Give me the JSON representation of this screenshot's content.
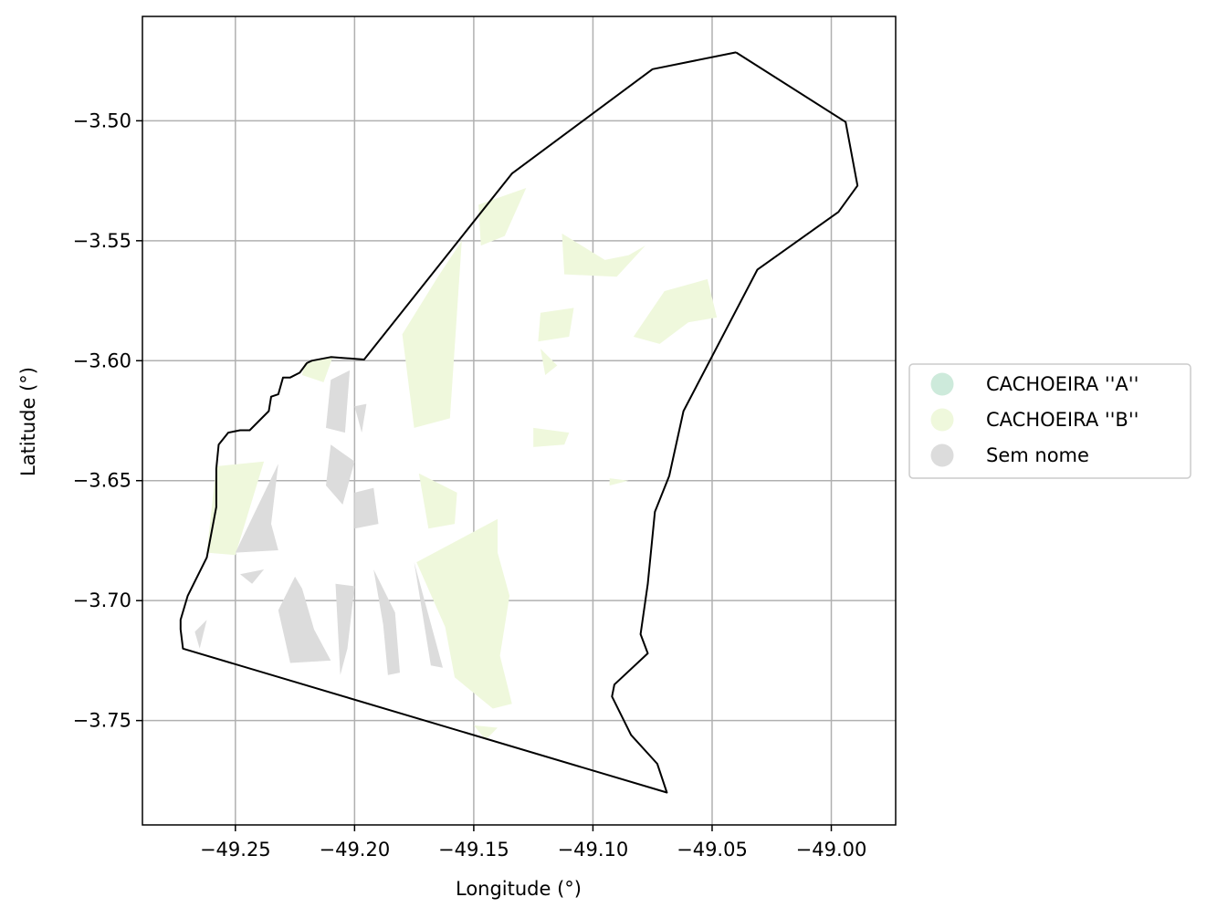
{
  "chart_data": {
    "type": "map",
    "title": "",
    "xlabel": "Longitude (°)",
    "ylabel": "Latitude (°)",
    "xlim": [
      -49.289,
      -48.973
    ],
    "ylim": [
      -3.7935,
      -3.4565
    ],
    "grid": true,
    "legend_position": "right-center",
    "x_ticks": [
      {
        "value": -49.25,
        "label": "−49.25"
      },
      {
        "value": -49.2,
        "label": "−49.20"
      },
      {
        "value": -49.15,
        "label": "−49.15"
      },
      {
        "value": -49.1,
        "label": "−49.10"
      },
      {
        "value": -49.05,
        "label": "−49.05"
      },
      {
        "value": -49.0,
        "label": "−49.00"
      }
    ],
    "y_ticks": [
      {
        "value": -3.5,
        "label": "−3.50"
      },
      {
        "value": -3.55,
        "label": "−3.55"
      },
      {
        "value": -3.6,
        "label": "−3.60"
      },
      {
        "value": -3.65,
        "label": "−3.65"
      },
      {
        "value": -3.7,
        "label": "−3.70"
      },
      {
        "value": -3.75,
        "label": "−3.75"
      }
    ],
    "legend": [
      {
        "label": "CACHOEIRA ''A''",
        "color": "#cdeadb"
      },
      {
        "label": "CACHOEIRA ''B''",
        "color": "#eff8dc"
      },
      {
        "label": "Sem nome",
        "color": "#dcdcdc"
      }
    ],
    "boundary": [
      [
        -49.04,
        -3.4715
      ],
      [
        -48.994,
        -3.5005
      ],
      [
        -48.989,
        -3.527
      ],
      [
        -48.997,
        -3.538
      ],
      [
        -49.031,
        -3.562
      ],
      [
        -49.062,
        -3.621
      ],
      [
        -49.068,
        -3.648
      ],
      [
        -49.074,
        -3.663
      ],
      [
        -49.077,
        -3.693
      ],
      [
        -49.08,
        -3.714
      ],
      [
        -49.077,
        -3.722
      ],
      [
        -49.091,
        -3.735
      ],
      [
        -49.092,
        -3.74
      ],
      [
        -49.084,
        -3.756
      ],
      [
        -49.073,
        -3.768
      ],
      [
        -49.069,
        -3.78
      ],
      [
        -49.272,
        -3.72
      ],
      [
        -49.273,
        -3.712
      ],
      [
        -49.273,
        -3.708
      ],
      [
        -49.27,
        -3.698
      ],
      [
        -49.262,
        -3.682
      ],
      [
        -49.258,
        -3.661
      ],
      [
        -49.258,
        -3.645
      ],
      [
        -49.257,
        -3.635
      ],
      [
        -49.253,
        -3.63
      ],
      [
        -49.248,
        -3.629
      ],
      [
        -49.244,
        -3.629
      ],
      [
        -49.236,
        -3.621
      ],
      [
        -49.235,
        -3.615
      ],
      [
        -49.232,
        -3.614
      ],
      [
        -49.23,
        -3.607
      ],
      [
        -49.227,
        -3.607
      ],
      [
        -49.223,
        -3.605
      ],
      [
        -49.22,
        -3.601
      ],
      [
        -49.218,
        -3.6
      ],
      [
        -49.21,
        -3.5985
      ],
      [
        -49.196,
        -3.5995
      ],
      [
        -49.134,
        -3.522
      ],
      [
        -49.075,
        -3.4785
      ],
      [
        -49.04,
        -3.4715
      ]
    ],
    "regions": [
      {
        "series": "CACHOEIRA ''B''",
        "points": [
          [
            -49.165,
            -3.565
          ],
          [
            -49.155,
            -3.55
          ],
          [
            -49.16,
            -3.624
          ],
          [
            -49.175,
            -3.628
          ],
          [
            -49.18,
            -3.589
          ]
        ]
      },
      {
        "series": "CACHOEIRA ''B''",
        "points": [
          [
            -49.148,
            -3.535
          ],
          [
            -49.128,
            -3.528
          ],
          [
            -49.137,
            -3.548
          ],
          [
            -49.147,
            -3.552
          ]
        ]
      },
      {
        "series": "CACHOEIRA ''B''",
        "points": [
          [
            -49.122,
            -3.58
          ],
          [
            -49.108,
            -3.578
          ],
          [
            -49.11,
            -3.59
          ],
          [
            -49.123,
            -3.592
          ]
        ]
      },
      {
        "series": "CACHOEIRA ''B''",
        "points": [
          [
            -49.113,
            -3.547
          ],
          [
            -49.095,
            -3.558
          ],
          [
            -49.085,
            -3.556
          ],
          [
            -49.078,
            -3.552
          ],
          [
            -49.09,
            -3.565
          ],
          [
            -49.112,
            -3.564
          ]
        ]
      },
      {
        "series": "CACHOEIRA ''B''",
        "points": [
          [
            -49.07,
            -3.571
          ],
          [
            -49.052,
            -3.566
          ],
          [
            -49.048,
            -3.582
          ],
          [
            -49.06,
            -3.584
          ],
          [
            -49.072,
            -3.593
          ],
          [
            -49.083,
            -3.59
          ]
        ]
      },
      {
        "series": "CACHOEIRA ''B''",
        "points": [
          [
            -49.122,
            -3.595
          ],
          [
            -49.115,
            -3.602
          ],
          [
            -49.12,
            -3.606
          ]
        ]
      },
      {
        "series": "CACHOEIRA ''B''",
        "points": [
          [
            -49.125,
            -3.628
          ],
          [
            -49.11,
            -3.63
          ],
          [
            -49.112,
            -3.635
          ],
          [
            -49.125,
            -3.636
          ]
        ]
      },
      {
        "series": "CACHOEIRA ''B''",
        "points": [
          [
            -49.093,
            -3.649
          ],
          [
            -49.085,
            -3.65
          ],
          [
            -49.093,
            -3.652
          ]
        ]
      },
      {
        "series": "CACHOEIRA ''B''",
        "points": [
          [
            -49.173,
            -3.647
          ],
          [
            -49.157,
            -3.655
          ],
          [
            -49.158,
            -3.668
          ],
          [
            -49.169,
            -3.67
          ]
        ]
      },
      {
        "series": "CACHOEIRA ''B''",
        "points": [
          [
            -49.174,
            -3.684
          ],
          [
            -49.14,
            -3.666
          ],
          [
            -49.14,
            -3.68
          ],
          [
            -49.135,
            -3.698
          ],
          [
            -49.139,
            -3.723
          ],
          [
            -49.134,
            -3.743
          ],
          [
            -49.142,
            -3.745
          ],
          [
            -49.158,
            -3.732
          ],
          [
            -49.162,
            -3.711
          ]
        ]
      },
      {
        "series": "CACHOEIRA ''B''",
        "points": [
          [
            -49.15,
            -3.752
          ],
          [
            -49.14,
            -3.753
          ],
          [
            -49.145,
            -3.758
          ]
        ]
      },
      {
        "series": "CACHOEIRA ''B''",
        "points": [
          [
            -49.258,
            -3.644
          ],
          [
            -49.238,
            -3.642
          ],
          [
            -49.25,
            -3.681
          ],
          [
            -49.262,
            -3.68
          ]
        ]
      },
      {
        "series": "CACHOEIRA ''B''",
        "points": [
          [
            -49.221,
            -3.601
          ],
          [
            -49.209,
            -3.598
          ],
          [
            -49.213,
            -3.609
          ],
          [
            -49.222,
            -3.606
          ]
        ]
      },
      {
        "series": "Sem nome",
        "points": [
          [
            -49.232,
            -3.643
          ],
          [
            -49.25,
            -3.68
          ],
          [
            -49.232,
            -3.679
          ],
          [
            -49.235,
            -3.668
          ]
        ]
      },
      {
        "series": "Sem nome",
        "points": [
          [
            -49.21,
            -3.608
          ],
          [
            -49.202,
            -3.604
          ],
          [
            -49.204,
            -3.63
          ],
          [
            -49.212,
            -3.628
          ]
        ]
      },
      {
        "series": "Sem nome",
        "points": [
          [
            -49.21,
            -3.635
          ],
          [
            -49.2,
            -3.642
          ],
          [
            -49.205,
            -3.66
          ],
          [
            -49.212,
            -3.652
          ]
        ]
      },
      {
        "series": "Sem nome",
        "points": [
          [
            -49.225,
            -3.69
          ],
          [
            -49.222,
            -3.695
          ],
          [
            -49.217,
            -3.712
          ],
          [
            -49.21,
            -3.725
          ],
          [
            -49.227,
            -3.726
          ],
          [
            -49.232,
            -3.704
          ]
        ]
      },
      {
        "series": "Sem nome",
        "points": [
          [
            -49.208,
            -3.693
          ],
          [
            -49.2,
            -3.694
          ],
          [
            -49.203,
            -3.72
          ],
          [
            -49.206,
            -3.731
          ]
        ]
      },
      {
        "series": "Sem nome",
        "points": [
          [
            -49.192,
            -3.687
          ],
          [
            -49.183,
            -3.705
          ],
          [
            -49.181,
            -3.73
          ],
          [
            -49.186,
            -3.731
          ],
          [
            -49.188,
            -3.71
          ]
        ]
      },
      {
        "series": "Sem nome",
        "points": [
          [
            -49.175,
            -3.684
          ],
          [
            -49.163,
            -3.728
          ],
          [
            -49.168,
            -3.727
          ]
        ]
      },
      {
        "series": "Sem nome",
        "points": [
          [
            -49.2,
            -3.655
          ],
          [
            -49.192,
            -3.653
          ],
          [
            -49.19,
            -3.668
          ],
          [
            -49.2,
            -3.67
          ]
        ]
      },
      {
        "series": "Sem nome",
        "points": [
          [
            -49.267,
            -3.713
          ],
          [
            -49.262,
            -3.708
          ],
          [
            -49.265,
            -3.72
          ]
        ]
      },
      {
        "series": "Sem nome",
        "points": [
          [
            -49.248,
            -3.689
          ],
          [
            -49.238,
            -3.687
          ],
          [
            -49.243,
            -3.693
          ]
        ]
      },
      {
        "series": "Sem nome",
        "points": [
          [
            -49.2,
            -3.619
          ],
          [
            -49.195,
            -3.618
          ],
          [
            -49.197,
            -3.63
          ]
        ]
      }
    ]
  }
}
